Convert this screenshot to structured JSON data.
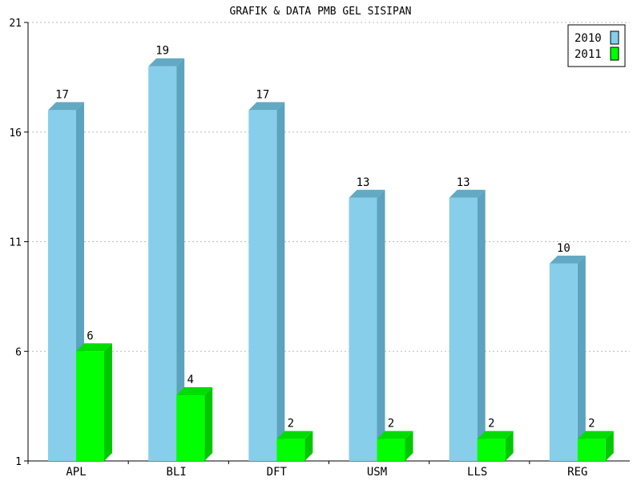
{
  "chart_data": {
    "type": "bar",
    "title": "GRAFIK & DATA PMB GEL SISIPAN",
    "categories": [
      "APL",
      "BLI",
      "DFT",
      "USM",
      "LLS",
      "REG"
    ],
    "series": [
      {
        "name": "2010",
        "values": [
          17,
          19,
          17,
          13,
          13,
          10
        ],
        "color": "#87CEEB",
        "side_color": "#5BA3BF",
        "top_color": "#62A9C4"
      },
      {
        "name": "2011",
        "values": [
          6,
          4,
          2,
          2,
          2,
          2
        ],
        "color": "#00FF00",
        "side_color": "#00C800",
        "top_color": "#00DD00"
      }
    ],
    "ylim": [
      1,
      21
    ],
    "yticks": [
      1,
      6,
      11,
      16,
      21
    ],
    "xlabel": "",
    "ylabel": "",
    "grid": true,
    "legend": "top-right",
    "style": "3d-bar"
  }
}
